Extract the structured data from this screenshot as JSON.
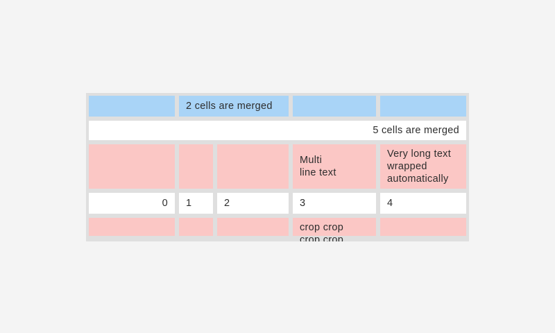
{
  "screen": {
    "background": "#f4f4f4"
  },
  "table_widget": {
    "frame_color": "#dfdfdf",
    "colors": {
      "page": "#f4f4f4",
      "frame": "#dfdfdf",
      "blue": "#a9d4f7",
      "pink": "#fbc7c5",
      "white": "#ffffff",
      "text": "#2d2d2d"
    },
    "rows": [
      {
        "cells": [
          {
            "text": "",
            "bg": "blue",
            "span": 1,
            "align": "left"
          },
          {
            "text": "2 cells are merged",
            "bg": "blue",
            "span": 2,
            "align": "left"
          },
          {
            "text": "",
            "bg": "blue",
            "span": 1,
            "align": "left"
          },
          {
            "text": "",
            "bg": "blue",
            "span": 1,
            "align": "left"
          }
        ]
      },
      {
        "cells": [
          {
            "text": "5 cells are merged",
            "bg": "white",
            "span": 5,
            "align": "right"
          }
        ]
      },
      {
        "cells": [
          {
            "text": "",
            "bg": "pink",
            "span": 1,
            "align": "left"
          },
          {
            "text": "",
            "bg": "pink",
            "span": 1,
            "align": "left"
          },
          {
            "text": "",
            "bg": "pink",
            "span": 1,
            "align": "left"
          },
          {
            "text": "Multi\nline text",
            "bg": "pink",
            "span": 1,
            "align": "left"
          },
          {
            "text": "Very long text\nwrapped\nautomatically",
            "bg": "pink",
            "span": 1,
            "align": "left"
          }
        ]
      },
      {
        "cells": [
          {
            "text": "0",
            "bg": "white",
            "span": 1,
            "align": "right"
          },
          {
            "text": "1",
            "bg": "white",
            "span": 1,
            "align": "left"
          },
          {
            "text": "2",
            "bg": "white",
            "span": 1,
            "align": "left"
          },
          {
            "text": "3",
            "bg": "white",
            "span": 1,
            "align": "left"
          },
          {
            "text": "4",
            "bg": "white",
            "span": 1,
            "align": "left"
          }
        ]
      },
      {
        "cells": [
          {
            "text": "",
            "bg": "pink",
            "span": 1,
            "align": "left"
          },
          {
            "text": "",
            "bg": "pink",
            "span": 1,
            "align": "left"
          },
          {
            "text": "",
            "bg": "pink",
            "span": 1,
            "align": "left"
          },
          {
            "text": "crop crop\ncrop crop",
            "bg": "pink",
            "span": 1,
            "align": "left"
          },
          {
            "text": "",
            "bg": "pink",
            "span": 1,
            "align": "left"
          }
        ]
      }
    ]
  }
}
